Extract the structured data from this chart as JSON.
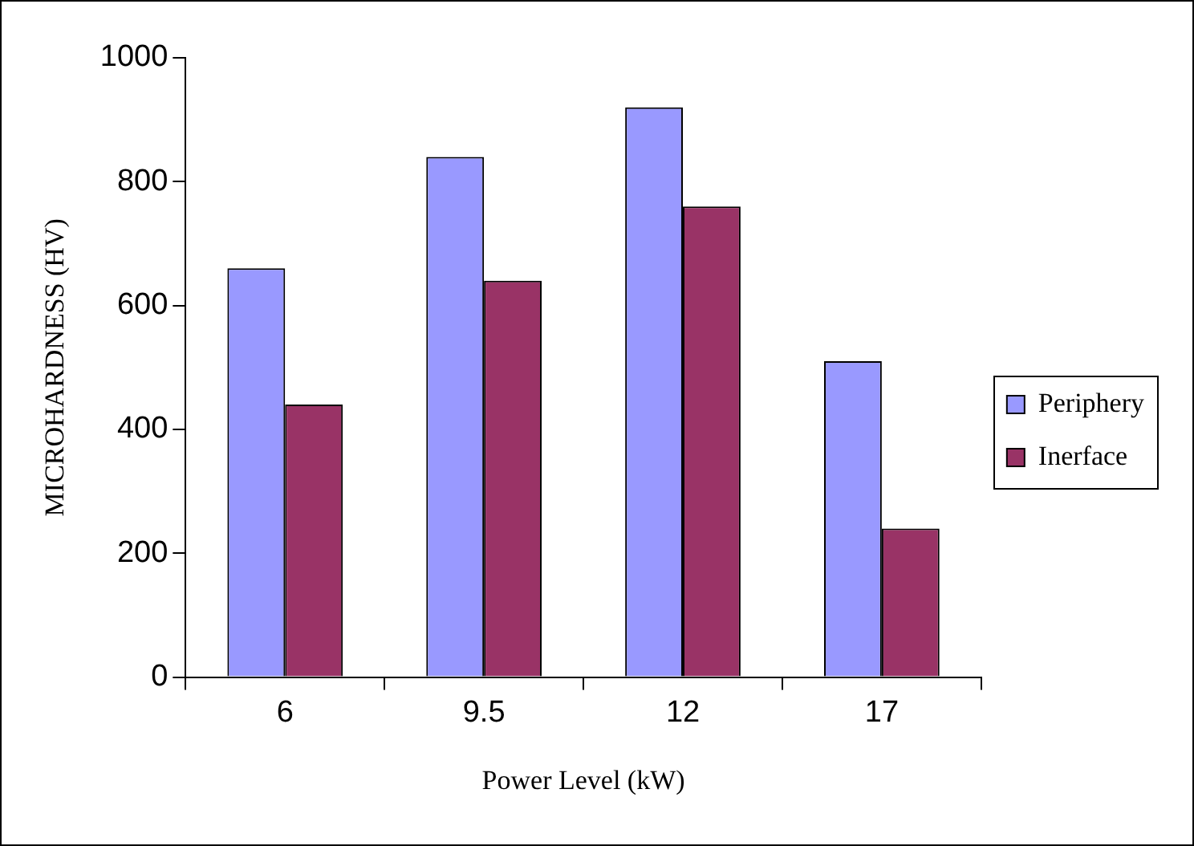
{
  "chart_data": {
    "type": "bar",
    "xlabel": "Power Level (kW)",
    "ylabel": "MICROHARDNESS (HV)",
    "categories": [
      "6",
      "9.5",
      "12",
      "17"
    ],
    "series": [
      {
        "name": "Periphery",
        "color": "#9999ff",
        "values": [
          660,
          840,
          920,
          510
        ]
      },
      {
        "name": "Inerface",
        "color": "#993366",
        "values": [
          440,
          640,
          760,
          240
        ]
      }
    ],
    "ylim": [
      0,
      1000
    ],
    "yticks": [
      0,
      200,
      400,
      600,
      800,
      1000
    ],
    "grid": false,
    "legend": "right"
  }
}
